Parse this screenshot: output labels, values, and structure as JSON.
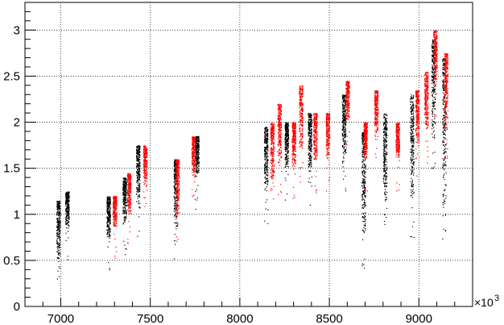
{
  "chart_data": {
    "type": "scatter",
    "title": "",
    "xlabel": "",
    "ylabel": "",
    "x_multiplier": "×10",
    "x_multiplier_exponent": "3",
    "xlim": [
      6800,
      9300
    ],
    "ylim": [
      0,
      3.3
    ],
    "x_ticks": [
      7000,
      7500,
      8000,
      8500,
      9000
    ],
    "x_tick_labels": [
      "7000",
      "7500",
      "8000",
      "8500",
      "9000"
    ],
    "y_ticks": [
      0,
      0.5,
      1,
      1.5,
      2,
      2.5,
      3
    ],
    "y_tick_labels": [
      "0",
      "0.5",
      "1",
      "1.5",
      "2",
      "2.5",
      "3"
    ],
    "grid": true,
    "colors": {
      "black": "#000000",
      "red": "#ff0000",
      "grid": "#000000",
      "frame": "#000000"
    },
    "series": [
      {
        "color": "black",
        "clusters": [
          {
            "x": 6985,
            "ymin": 0.5,
            "ymax": 1.15
          },
          {
            "x": 7035,
            "ymin": 0.85,
            "ymax": 1.25
          },
          {
            "x": 7265,
            "ymin": 0.75,
            "ymax": 1.2
          },
          {
            "x": 7355,
            "ymin": 0.9,
            "ymax": 1.4
          },
          {
            "x": 7430,
            "ymin": 1.1,
            "ymax": 1.75
          },
          {
            "x": 7640,
            "ymin": 0.85,
            "ymax": 1.6
          },
          {
            "x": 7760,
            "ymin": 1.4,
            "ymax": 1.85
          },
          {
            "x": 8145,
            "ymin": 1.25,
            "ymax": 1.95
          },
          {
            "x": 8260,
            "ymin": 1.5,
            "ymax": 2.0
          },
          {
            "x": 8390,
            "ymin": 1.45,
            "ymax": 2.1
          },
          {
            "x": 8580,
            "ymin": 1.55,
            "ymax": 2.3
          },
          {
            "x": 8690,
            "ymin": 0.75,
            "ymax": 1.9
          },
          {
            "x": 8810,
            "ymin": 1.1,
            "ymax": 2.1
          },
          {
            "x": 8960,
            "ymin": 1.1,
            "ymax": 2.3
          },
          {
            "x": 9080,
            "ymin": 1.8,
            "ymax": 2.9
          },
          {
            "x": 9140,
            "ymin": 1.0,
            "ymax": 2.7
          }
        ]
      },
      {
        "color": "red",
        "clusters": [
          {
            "x": 7300,
            "ymin": 0.85,
            "ymax": 1.2
          },
          {
            "x": 7380,
            "ymin": 1.0,
            "ymax": 1.45
          },
          {
            "x": 7470,
            "ymin": 1.3,
            "ymax": 1.75
          },
          {
            "x": 7650,
            "ymin": 1.0,
            "ymax": 1.6
          },
          {
            "x": 7740,
            "ymin": 1.4,
            "ymax": 1.85
          },
          {
            "x": 8180,
            "ymin": 1.35,
            "ymax": 2.0
          },
          {
            "x": 8220,
            "ymin": 1.55,
            "ymax": 2.2
          },
          {
            "x": 8300,
            "ymin": 1.5,
            "ymax": 2.0
          },
          {
            "x": 8340,
            "ymin": 1.7,
            "ymax": 2.4
          },
          {
            "x": 8420,
            "ymin": 1.55,
            "ymax": 2.1
          },
          {
            "x": 8490,
            "ymin": 1.6,
            "ymax": 2.1
          },
          {
            "x": 8600,
            "ymin": 2.0,
            "ymax": 2.45
          },
          {
            "x": 8700,
            "ymin": 1.6,
            "ymax": 2.0
          },
          {
            "x": 8760,
            "ymin": 1.85,
            "ymax": 2.35
          },
          {
            "x": 8880,
            "ymin": 1.6,
            "ymax": 2.0
          },
          {
            "x": 8990,
            "ymin": 1.75,
            "ymax": 2.35
          },
          {
            "x": 9040,
            "ymin": 1.9,
            "ymax": 2.55
          },
          {
            "x": 9090,
            "ymin": 2.35,
            "ymax": 3.0
          },
          {
            "x": 9150,
            "ymin": 1.9,
            "ymax": 2.75
          }
        ]
      }
    ]
  }
}
